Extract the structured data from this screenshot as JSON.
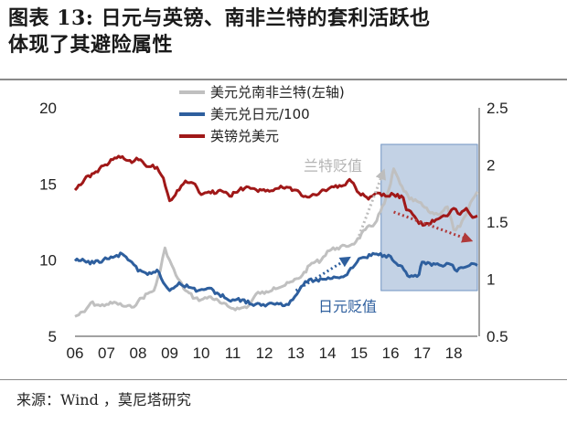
{
  "header": {
    "title_line1": "图表 13: 日元与英镑、南非兰特的套利活跃也",
    "title_line2": "体现了其避险属性"
  },
  "footer": {
    "source": "来源：Wind ，莫尼塔研究"
  },
  "chart_data": {
    "type": "line",
    "x_ticks": [
      "06",
      "07",
      "08",
      "09",
      "10",
      "11",
      "12",
      "13",
      "14",
      "15",
      "16",
      "17",
      "18"
    ],
    "xlim": [
      2006.0,
      2018.75
    ],
    "y_left": {
      "ticks": [
        "5",
        "10",
        "15",
        "20"
      ],
      "ylim": [
        5,
        20
      ]
    },
    "y_right": {
      "ticks": [
        "0.5",
        "1",
        "1.5",
        "2",
        "2.5"
      ],
      "ylim": [
        0.5,
        2.5
      ]
    },
    "legend": [
      {
        "name": "美元兑南非兰特(左轴)",
        "color": "#c0c0c0"
      },
      {
        "name": "美元兑日元/100",
        "color": "#2e5f9e"
      },
      {
        "name": "英镑兑美元",
        "color": "#a01818"
      }
    ],
    "annotations": {
      "zar_label": "兰特贬值",
      "jpy_label": "日元贬值",
      "highlight_period": [
        2015.7,
        2018.75
      ]
    },
    "series": [
      {
        "name": "美元兑南非兰特(左轴)",
        "axis": "left",
        "color": "#c0c0c0",
        "x": [
          2006.0,
          2006.3,
          2006.5,
          2006.8,
          2007.0,
          2007.3,
          2007.5,
          2007.8,
          2008.0,
          2008.3,
          2008.5,
          2008.7,
          2008.85,
          2009.0,
          2009.2,
          2009.5,
          2009.8,
          2010.0,
          2010.3,
          2010.6,
          2010.9,
          2011.2,
          2011.5,
          2011.8,
          2012.0,
          2012.3,
          2012.6,
          2012.9,
          2013.2,
          2013.5,
          2013.8,
          2014.0,
          2014.3,
          2014.6,
          2014.9,
          2015.2,
          2015.5,
          2015.8,
          2016.0,
          2016.1,
          2016.3,
          2016.6,
          2016.9,
          2017.2,
          2017.5,
          2017.8,
          2018.0,
          2018.2,
          2018.4,
          2018.6,
          2018.75
        ],
        "values": [
          6.3,
          6.6,
          7.2,
          7.0,
          7.1,
          7.2,
          7.0,
          6.9,
          7.3,
          7.8,
          8.0,
          9.3,
          10.8,
          10.0,
          9.0,
          8.0,
          7.5,
          7.4,
          7.6,
          7.2,
          6.9,
          6.8,
          7.0,
          7.9,
          7.8,
          8.2,
          8.3,
          8.6,
          9.0,
          9.8,
          10.0,
          10.6,
          10.8,
          10.9,
          11.2,
          12.0,
          12.4,
          13.7,
          15.0,
          16.0,
          15.0,
          14.0,
          13.8,
          13.2,
          13.0,
          13.5,
          12.0,
          12.2,
          13.0,
          14.0,
          14.5
        ]
      },
      {
        "name": "美元兑日元/100",
        "axis": "right",
        "color": "#2e5f9e",
        "x": [
          2006.0,
          2006.3,
          2006.6,
          2006.9,
          2007.2,
          2007.5,
          2007.8,
          2008.0,
          2008.3,
          2008.6,
          2008.8,
          2009.0,
          2009.3,
          2009.6,
          2009.9,
          2010.2,
          2010.5,
          2010.8,
          2011.0,
          2011.3,
          2011.6,
          2011.9,
          2012.1,
          2012.4,
          2012.7,
          2012.9,
          2013.1,
          2013.3,
          2013.6,
          2013.9,
          2014.2,
          2014.5,
          2014.8,
          2015.0,
          2015.2,
          2015.5,
          2015.8,
          2016.0,
          2016.3,
          2016.6,
          2016.9,
          2017.0,
          2017.3,
          2017.6,
          2017.9,
          2018.1,
          2018.3,
          2018.5,
          2018.75
        ],
        "values": [
          1.16,
          1.16,
          1.14,
          1.17,
          1.19,
          1.22,
          1.15,
          1.07,
          1.04,
          1.08,
          0.97,
          0.9,
          0.97,
          0.93,
          0.9,
          0.92,
          0.88,
          0.83,
          0.82,
          0.82,
          0.78,
          0.77,
          0.78,
          0.79,
          0.78,
          0.82,
          0.9,
          0.98,
          0.99,
          1.0,
          1.02,
          1.02,
          1.1,
          1.18,
          1.19,
          1.22,
          1.21,
          1.2,
          1.12,
          1.02,
          1.04,
          1.15,
          1.12,
          1.12,
          1.13,
          1.07,
          1.1,
          1.12,
          1.12
        ]
      },
      {
        "name": "英镑兑美元",
        "axis": "left",
        "color": "#a01818",
        "x": [
          2006.0,
          2006.3,
          2006.6,
          2006.9,
          2007.2,
          2007.5,
          2007.8,
          2007.95,
          2008.2,
          2008.6,
          2008.8,
          2009.0,
          2009.3,
          2009.5,
          2009.8,
          2010.0,
          2010.3,
          2010.6,
          2010.9,
          2011.2,
          2011.5,
          2011.8,
          2012.1,
          2012.4,
          2012.7,
          2013.0,
          2013.3,
          2013.6,
          2013.9,
          2014.2,
          2014.5,
          2014.7,
          2015.0,
          2015.3,
          2015.6,
          2015.9,
          2016.1,
          2016.4,
          2016.5,
          2016.7,
          2016.9,
          2017.2,
          2017.5,
          2017.8,
          2018.0,
          2018.2,
          2018.4,
          2018.6,
          2018.75
        ],
        "values": [
          14.6,
          15.3,
          15.7,
          16.2,
          16.6,
          16.8,
          16.4,
          16.7,
          16.3,
          16.1,
          15.4,
          13.9,
          14.6,
          15.2,
          15.0,
          14.3,
          14.4,
          14.6,
          14.2,
          14.6,
          14.8,
          14.5,
          14.6,
          14.7,
          14.8,
          14.6,
          14.2,
          14.3,
          14.6,
          14.8,
          14.9,
          15.3,
          14.4,
          14.0,
          14.4,
          14.2,
          14.3,
          14.1,
          13.3,
          13.0,
          12.4,
          12.4,
          12.7,
          12.9,
          13.4,
          13.0,
          13.4,
          12.8,
          12.9
        ]
      }
    ]
  }
}
